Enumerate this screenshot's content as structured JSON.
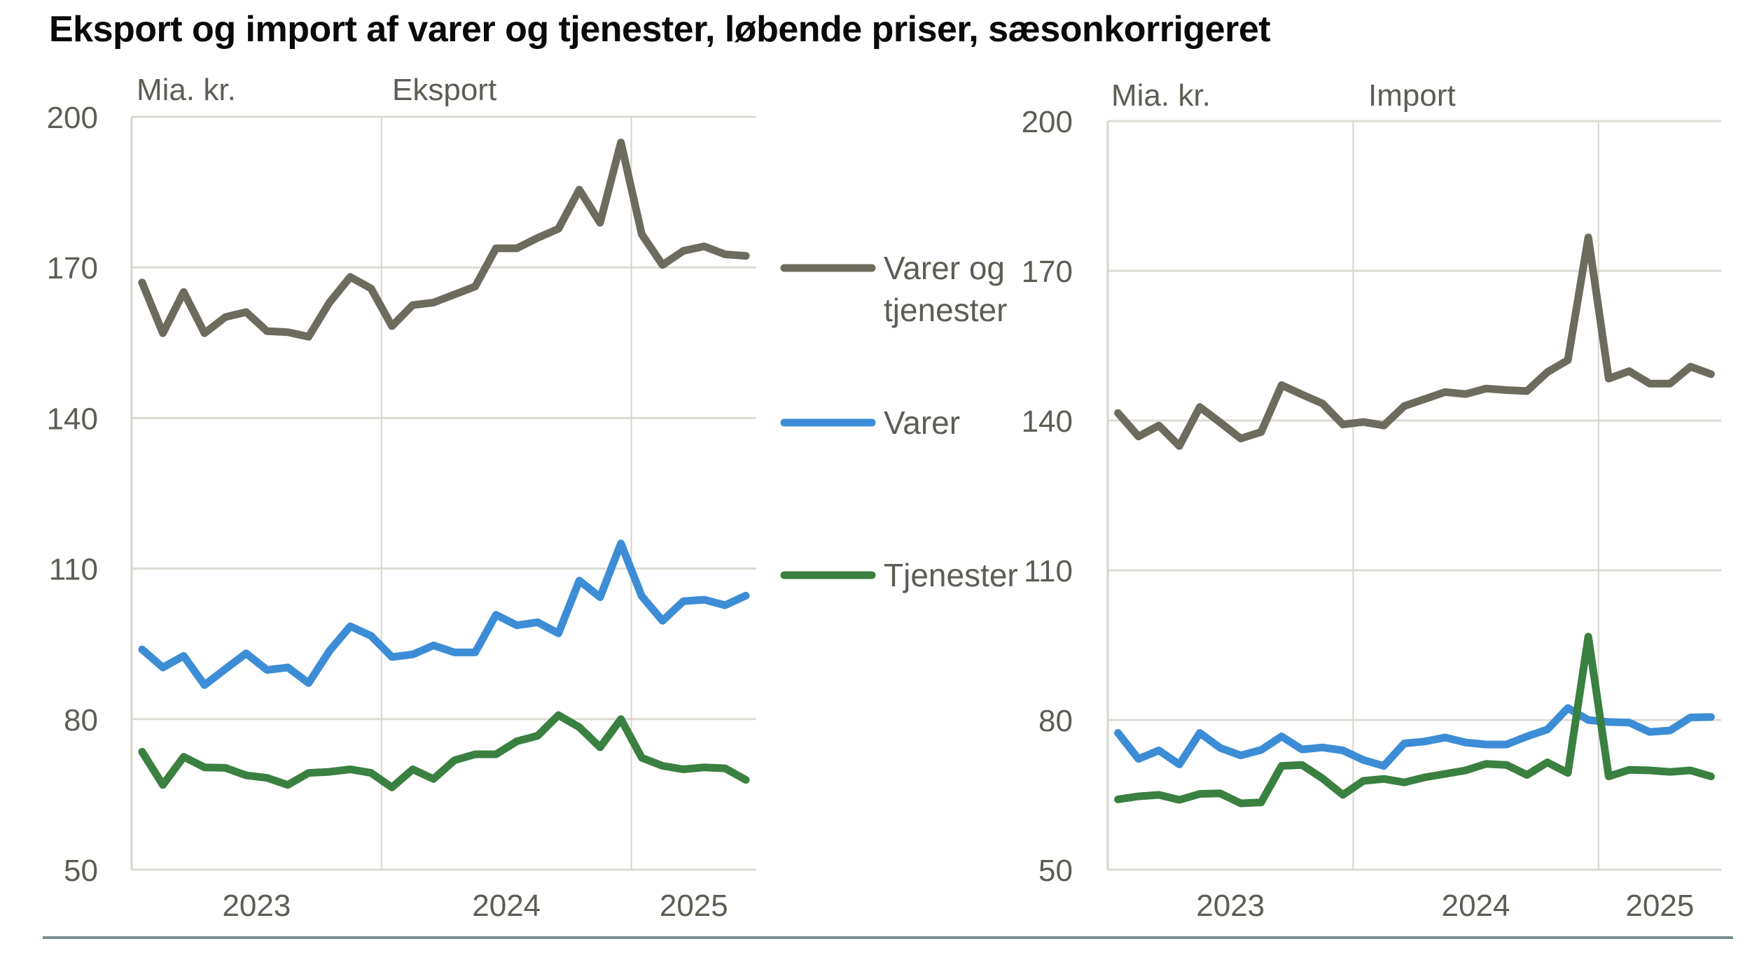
{
  "title": "Eksport og import af varer og tjenester, løbende priser, sæsonkorrigeret",
  "legend": [
    {
      "label_lines": [
        "Varer og",
        "tjenester"
      ],
      "color": "#6d6b5e"
    },
    {
      "label_lines": [
        "Varer"
      ],
      "color": "#3c8dd6"
    },
    {
      "label_lines": [
        "Tjenester"
      ],
      "color": "#3a8040"
    }
  ],
  "chart_data": [
    {
      "type": "line",
      "title": "Eksport",
      "ylabel": "Mia. kr.",
      "xlabel": "",
      "ylim": [
        50,
        200
      ],
      "yticks": [
        50,
        80,
        110,
        140,
        170,
        200
      ],
      "grid": true,
      "x_period": "monthly, Jan 2023 – Jun 2025",
      "xtick_labels": [
        "2023",
        "2024",
        "2025"
      ],
      "series": [
        {
          "name": "Varer og tjenester",
          "color": "#6d6b5e",
          "values": [
            167.0,
            156.9,
            165.1,
            156.9,
            160.1,
            161.1,
            157.3,
            157.1,
            156.2,
            163.0,
            168.1,
            165.8,
            158.3,
            162.5,
            163.0,
            164.6,
            166.2,
            173.8,
            173.8,
            175.9,
            177.7,
            185.5,
            178.9,
            194.9,
            176.6,
            170.5,
            173.3,
            174.2,
            172.6,
            172.3
          ]
        },
        {
          "name": "Varer",
          "color": "#3c8dd6",
          "values": [
            93.9,
            90.3,
            92.6,
            86.8,
            90.0,
            93.1,
            89.8,
            90.3,
            87.2,
            93.6,
            98.5,
            96.6,
            92.4,
            92.9,
            94.7,
            93.3,
            93.3,
            100.8,
            98.7,
            99.3,
            97.1,
            107.6,
            104.3,
            115.0,
            104.5,
            99.6,
            103.5,
            103.8,
            102.7,
            104.6
          ]
        },
        {
          "name": "Tjenester",
          "color": "#3a8040",
          "values": [
            73.5,
            66.9,
            72.5,
            70.4,
            70.3,
            68.8,
            68.3,
            66.9,
            69.3,
            69.5,
            70.0,
            69.3,
            66.4,
            70.0,
            68.1,
            71.8,
            73.0,
            73.0,
            75.6,
            76.7,
            80.8,
            78.4,
            74.4,
            80.0,
            72.3,
            70.7,
            70.0,
            70.4,
            70.2,
            67.9
          ]
        }
      ]
    },
    {
      "type": "line",
      "title": "Import",
      "ylabel": "Mia. kr.",
      "xlabel": "",
      "ylim": [
        50,
        200
      ],
      "yticks": [
        50,
        80,
        110,
        140,
        170,
        200
      ],
      "grid": true,
      "x_period": "monthly, Jan 2023 – Jun 2025",
      "xtick_labels": [
        "2023",
        "2024",
        "2025"
      ],
      "series": [
        {
          "name": "Varer og tjenester",
          "color": "#6d6b5e",
          "values": [
            141.5,
            136.8,
            139.0,
            134.9,
            142.7,
            139.6,
            136.4,
            137.7,
            147.1,
            145.2,
            143.4,
            139.2,
            139.7,
            139.0,
            142.9,
            144.3,
            145.7,
            145.3,
            146.4,
            146.1,
            145.9,
            149.7,
            152.1,
            176.7,
            148.4,
            149.9,
            147.4,
            147.4,
            150.8,
            149.3
          ]
        },
        {
          "name": "Varer",
          "color": "#3c8dd6",
          "values": [
            77.4,
            72.2,
            73.9,
            71.1,
            77.4,
            74.4,
            72.9,
            74.0,
            76.7,
            74.1,
            74.5,
            73.9,
            72.0,
            70.8,
            75.3,
            75.7,
            76.5,
            75.5,
            75.1,
            75.1,
            76.7,
            78.1,
            82.4,
            80.0,
            79.6,
            79.5,
            77.6,
            77.9,
            80.5,
            80.6
          ]
        },
        {
          "name": "Tjenester",
          "color": "#3a8040",
          "values": [
            64.1,
            64.7,
            65.0,
            64.0,
            65.2,
            65.3,
            63.3,
            63.5,
            70.8,
            71.0,
            68.3,
            65.0,
            67.8,
            68.2,
            67.5,
            68.5,
            69.2,
            69.9,
            71.2,
            71.0,
            69.0,
            71.5,
            69.4,
            96.7,
            68.7,
            70.0,
            69.9,
            69.6,
            69.9,
            68.7
          ]
        }
      ]
    }
  ]
}
